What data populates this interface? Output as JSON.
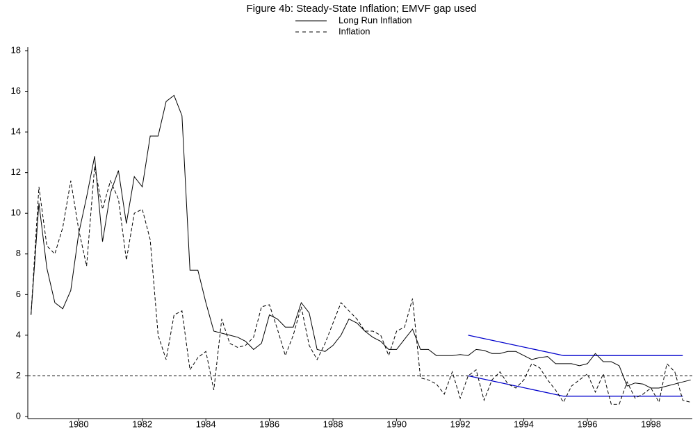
{
  "chart_data": {
    "type": "line",
    "title": "Figure 4b: Steady-State Inflation; EMVF gap used",
    "x": [
      1978.5,
      1978.75,
      1979,
      1979.25,
      1979.5,
      1979.75,
      1980,
      1980.25,
      1980.5,
      1980.75,
      1981,
      1981.25,
      1981.5,
      1981.75,
      1982,
      1982.25,
      1982.5,
      1982.75,
      1983,
      1983.25,
      1983.5,
      1983.75,
      1984,
      1984.25,
      1984.5,
      1984.75,
      1985,
      1985.25,
      1985.5,
      1985.75,
      1986,
      1986.25,
      1986.5,
      1986.75,
      1987,
      1987.25,
      1987.5,
      1987.75,
      1988,
      1988.25,
      1988.5,
      1988.75,
      1989,
      1989.25,
      1989.5,
      1989.75,
      1990,
      1990.25,
      1990.5,
      1990.75,
      1991,
      1991.25,
      1991.5,
      1991.75,
      1992,
      1992.25,
      1992.5,
      1992.75,
      1993,
      1993.25,
      1993.5,
      1993.75,
      1994,
      1994.25,
      1994.5,
      1994.75,
      1995,
      1995.25,
      1995.5,
      1995.75,
      1996,
      1996.25,
      1996.5,
      1996.75,
      1997,
      1997.25,
      1997.5,
      1997.75,
      1998,
      1998.25,
      1998.5,
      1998.75,
      1999,
      1999.25
    ],
    "series": [
      {
        "name": "Long Run Inflation",
        "color": "#000000",
        "dash": false,
        "values": [
          5.0,
          10.5,
          7.3,
          5.6,
          5.3,
          6.2,
          9.0,
          10.8,
          12.8,
          8.6,
          11.0,
          12.1,
          9.5,
          11.8,
          11.3,
          13.8,
          13.8,
          15.5,
          15.8,
          14.8,
          7.2,
          7.2,
          5.6,
          4.2,
          4.1,
          4.0,
          3.9,
          3.7,
          3.3,
          3.6,
          5.0,
          4.8,
          4.4,
          4.4,
          5.6,
          5.1,
          3.3,
          3.2,
          3.5,
          4.0,
          4.8,
          4.6,
          4.2,
          3.9,
          3.7,
          3.3,
          3.3,
          3.8,
          4.3,
          3.3,
          3.3,
          3.0,
          3.0,
          3.0,
          3.05,
          3.0,
          3.3,
          3.25,
          3.1,
          3.1,
          3.2,
          3.2,
          3.0,
          2.8,
          2.9,
          2.95,
          2.6,
          2.6,
          2.6,
          2.5,
          2.6,
          3.1,
          2.7,
          2.7,
          2.5,
          1.5,
          1.65,
          1.6,
          1.4,
          1.4,
          1.5,
          1.6,
          1.7,
          1.8
        ]
      },
      {
        "name": "Inflation",
        "color": "#000000",
        "dash": true,
        "values": [
          5.0,
          11.3,
          8.4,
          8.0,
          9.3,
          11.6,
          9.2,
          7.4,
          12.3,
          10.2,
          11.6,
          10.7,
          7.7,
          10.0,
          10.2,
          8.7,
          4.0,
          2.8,
          5.0,
          5.2,
          2.3,
          2.9,
          3.2,
          1.3,
          4.8,
          3.6,
          3.4,
          3.5,
          3.9,
          5.4,
          5.5,
          4.3,
          3.0,
          4.0,
          5.4,
          3.5,
          2.8,
          3.6,
          4.6,
          5.6,
          5.2,
          4.8,
          4.2,
          4.2,
          4.0,
          3.0,
          4.2,
          4.4,
          5.8,
          1.9,
          1.8,
          1.6,
          1.1,
          2.2,
          0.9,
          2.0,
          2.3,
          0.8,
          1.8,
          2.2,
          1.6,
          1.4,
          1.8,
          2.6,
          2.4,
          1.8,
          1.3,
          0.7,
          1.5,
          1.8,
          2.1,
          1.2,
          2.1,
          0.6,
          0.6,
          1.7,
          0.9,
          1.1,
          1.4,
          0.7,
          2.6,
          2.2,
          0.8,
          0.7
        ]
      }
    ],
    "bands": [
      {
        "color": "#0000cc",
        "x": [
          1992.25,
          1995.25,
          1999.0
        ],
        "values": [
          4.0,
          3.0,
          3.0
        ]
      },
      {
        "color": "#0000cc",
        "x": [
          1992.25,
          1995.25,
          1999.0
        ],
        "values": [
          2.0,
          1.0,
          1.0
        ]
      }
    ],
    "hline": 2,
    "xlim": [
      1978.4,
      1999.3
    ],
    "xticks": [
      1980,
      1982,
      1984,
      1986,
      1988,
      1990,
      1992,
      1994,
      1996,
      1998
    ],
    "ylim": [
      0,
      18
    ],
    "yticks": [
      0,
      2,
      4,
      6,
      8,
      10,
      12,
      14,
      16,
      18
    ],
    "legend": "top"
  }
}
